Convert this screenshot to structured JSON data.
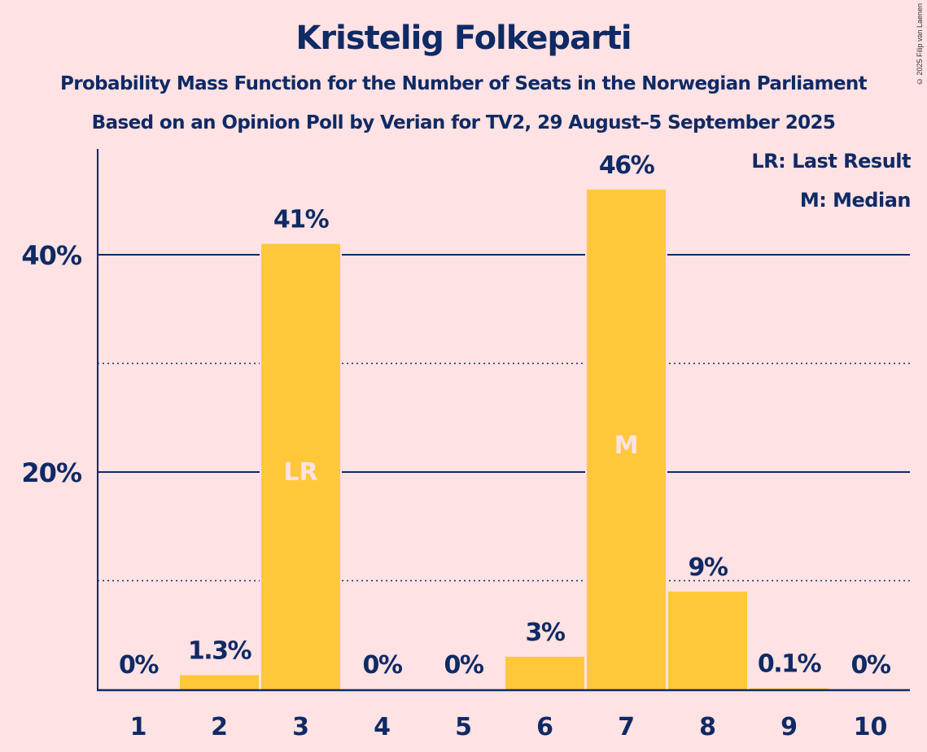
{
  "title": "Kristelig Folkeparti",
  "subtitle1": "Probability Mass Function for the Number of Seats in the Norwegian Parliament",
  "subtitle2": "Based on an Opinion Poll by Verian for TV2, 29 August–5 September 2025",
  "copyright": "© 2025 Filip van Laenen",
  "legend": {
    "lr": "LR: Last Result",
    "m": "M: Median"
  },
  "colors": {
    "background": "#ffe2e3",
    "bar": "#ffc83a",
    "text": "#0f2a65",
    "bar_marker_text": "#ffe2e3"
  },
  "chart_data": {
    "type": "bar",
    "title": "Kristelig Folkeparti",
    "xlabel": "",
    "ylabel": "",
    "categories": [
      "1",
      "2",
      "3",
      "4",
      "5",
      "6",
      "7",
      "8",
      "9",
      "10"
    ],
    "values": [
      0,
      1.3,
      41,
      0,
      0,
      3,
      46,
      9,
      0.1,
      0
    ],
    "labels": [
      "0%",
      "1.3%",
      "41%",
      "0%",
      "0%",
      "3%",
      "46%",
      "9%",
      "0.1%",
      "0%"
    ],
    "markers": {
      "3": "LR",
      "7": "M"
    },
    "ylim": [
      0,
      50
    ],
    "yticks": [
      {
        "value": 20,
        "label": "20%"
      },
      {
        "value": 40,
        "label": "40%"
      }
    ],
    "minor_gridlines": [
      10,
      30
    ],
    "grid": true,
    "legend_position": "top-right"
  }
}
